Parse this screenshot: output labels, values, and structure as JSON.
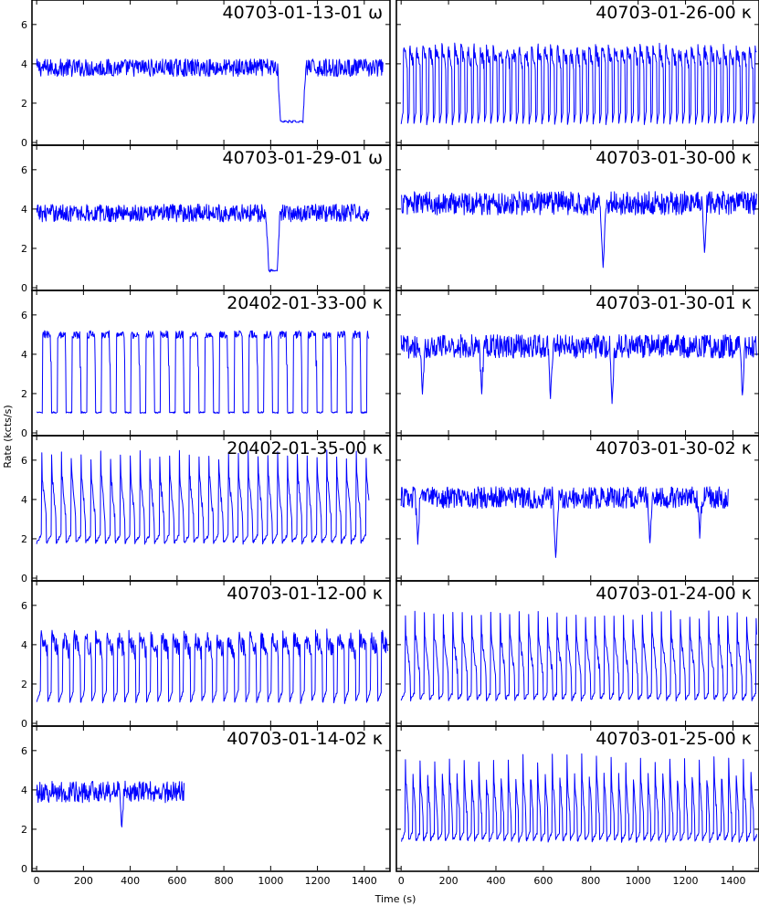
{
  "chart_data": {
    "type": "line",
    "xlabel": "Time (s)",
    "ylabel": "Rate (kcts/s)",
    "xlim": [
      -20,
      1510
    ],
    "ylim": [
      0,
      7.2
    ],
    "xticks": [
      0,
      200,
      400,
      600,
      800,
      1000,
      1200,
      1400
    ],
    "yticks": [
      0,
      2,
      4,
      6
    ],
    "line_color": "#0000ff",
    "panels": [
      {
        "title": "40703-01-13-01   ω",
        "column": 0,
        "row": 0,
        "pattern": "flat_dip",
        "duration": 1480,
        "base": 3.8,
        "noise": 0.45,
        "dips": [
          [
            1030,
            1150,
            1.0
          ]
        ]
      },
      {
        "title": "40703-01-26-00   κ",
        "column": 1,
        "row": 0,
        "pattern": "osc",
        "duration": 1500,
        "period": 27,
        "low": 0.9,
        "high": 4.8,
        "lowfrac": 0.3,
        "noise": 0.35
      },
      {
        "title": "40703-01-29-01   ω",
        "column": 0,
        "row": 1,
        "pattern": "flat_dip",
        "duration": 1420,
        "base": 3.8,
        "noise": 0.45,
        "dips": [
          [
            980,
            1040,
            0.8
          ]
        ]
      },
      {
        "title": "40703-01-30-00   κ",
        "column": 1,
        "row": 1,
        "pattern": "flat_dip",
        "duration": 1500,
        "base": 4.3,
        "noise": 0.6,
        "dips": [
          [
            840,
            865,
            1.0
          ],
          [
            1270,
            1290,
            1.0
          ]
        ]
      },
      {
        "title": "20402-01-33-00   κ",
        "column": 0,
        "row": 2,
        "pattern": "square",
        "duration": 1420,
        "period": 63,
        "low": 1.0,
        "high": 5.0,
        "lowfrac": 0.4,
        "noise": 0.2
      },
      {
        "title": "40703-01-30-01   κ",
        "column": 1,
        "row": 2,
        "pattern": "flat_dip",
        "duration": 1500,
        "base": 4.4,
        "noise": 0.6,
        "dips": [
          [
            80,
            100,
            1.2
          ],
          [
            330,
            350,
            1.5
          ],
          [
            620,
            640,
            1.0
          ],
          [
            880,
            900,
            0.9
          ],
          [
            1430,
            1450,
            1.2
          ]
        ]
      },
      {
        "title": "20402-01-35-00   κ",
        "column": 0,
        "row": 3,
        "pattern": "spike",
        "duration": 1420,
        "period": 42,
        "low": 1.8,
        "high": 5.6,
        "lowfrac": 0.5,
        "noise": 0.25
      },
      {
        "title": "40703-01-30-02   κ",
        "column": 1,
        "row": 3,
        "pattern": "flat_dip",
        "duration": 1380,
        "base": 4.1,
        "noise": 0.55,
        "dips": [
          [
            60,
            80,
            1.2
          ],
          [
            640,
            665,
            1.0
          ],
          [
            1040,
            1060,
            1.1
          ],
          [
            1250,
            1270,
            1.6
          ]
        ]
      },
      {
        "title": "40703-01-12-00   κ",
        "column": 0,
        "row": 4,
        "pattern": "osc",
        "duration": 1500,
        "period": 47,
        "low": 1.0,
        "high": 4.4,
        "lowfrac": 0.35,
        "noise": 0.45
      },
      {
        "title": "40703-01-24-00   κ",
        "column": 1,
        "row": 4,
        "pattern": "spike",
        "duration": 1500,
        "period": 40,
        "low": 1.2,
        "high": 4.7,
        "lowfrac": 0.45,
        "noise": 0.25
      },
      {
        "title": "40703-01-14-02   κ",
        "column": 0,
        "row": 5,
        "pattern": "flat_dip",
        "duration": 630,
        "base": 3.9,
        "noise": 0.55,
        "dips": [
          [
            355,
            372,
            1.0
          ]
        ]
      },
      {
        "title": "40703-01-25-00   κ",
        "column": 1,
        "row": 5,
        "pattern": "spike",
        "duration": 1500,
        "period": 31,
        "low": 1.4,
        "high": 5.0,
        "lowfrac": 0.55,
        "noise": 0.25
      }
    ]
  }
}
